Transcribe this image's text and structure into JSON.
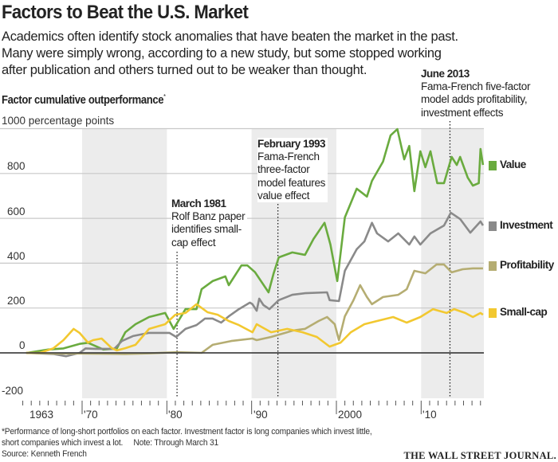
{
  "title": "Factors to Beat the U.S. Market",
  "subtitle": [
    "Academics often identify stock anomalies that have beaten the market in the past.",
    "Many were simply wrong, according to a new study, but some stopped working",
    "after publication and others turned out to be weaker than thought."
  ],
  "chart_data": {
    "type": "line",
    "title": "Factor cumulative outperformance",
    "title_marker": "*",
    "ylabel": "percentage points",
    "yunit_label": "1000 percentage points",
    "ylim": [
      -200,
      1000
    ],
    "yticks": [
      -200,
      0,
      200,
      400,
      600,
      800,
      1000
    ],
    "ytick_labels": [
      "-200",
      "0",
      "200",
      "400",
      "600",
      "800",
      "1000 percentage points"
    ],
    "xlim": [
      1962.7,
      2017.4
    ],
    "xtick_labels": [
      {
        "x": 1963,
        "label": "1963"
      },
      {
        "x": 1970,
        "label": "'70"
      },
      {
        "x": 1980,
        "label": "'80"
      },
      {
        "x": 1990,
        "label": "'90"
      },
      {
        "x": 2000,
        "label": "2000"
      },
      {
        "x": 2010,
        "label": "'10"
      }
    ],
    "grid": true,
    "shaded_decades": [
      [
        1970,
        1980
      ],
      [
        1990,
        2000
      ],
      [
        2010,
        2017.4
      ]
    ],
    "legend_placement": "right (line-end labels)",
    "series": [
      {
        "name": "Value",
        "color": "#6aab3f",
        "points": [
          [
            1963.5,
            0
          ],
          [
            1966.0,
            15
          ],
          [
            1967.8,
            20
          ],
          [
            1969.7,
            40
          ],
          [
            1970.7,
            45
          ],
          [
            1972.5,
            15
          ],
          [
            1974.1,
            20
          ],
          [
            1975.1,
            92
          ],
          [
            1976.3,
            128
          ],
          [
            1977.9,
            160
          ],
          [
            1979.8,
            178
          ],
          [
            1980.8,
            107
          ],
          [
            1982.2,
            195
          ],
          [
            1983.5,
            195
          ],
          [
            1984.1,
            284
          ],
          [
            1985.4,
            320
          ],
          [
            1986.9,
            341
          ],
          [
            1987.3,
            302
          ],
          [
            1988.8,
            390
          ],
          [
            1989.5,
            390
          ],
          [
            1990.4,
            360
          ],
          [
            1992.0,
            270
          ],
          [
            1992.6,
            355
          ],
          [
            1993.2,
            426
          ],
          [
            1994.8,
            448
          ],
          [
            1996.3,
            437
          ],
          [
            1997.3,
            508
          ],
          [
            1998.6,
            580
          ],
          [
            1999.3,
            483
          ],
          [
            2000.1,
            320
          ],
          [
            2001.0,
            604
          ],
          [
            2002.4,
            732
          ],
          [
            2003.6,
            697
          ],
          [
            2004.2,
            767
          ],
          [
            2005.5,
            853
          ],
          [
            2006.4,
            970
          ],
          [
            2007.2,
            998
          ],
          [
            2008.0,
            863
          ],
          [
            2008.6,
            923
          ],
          [
            2009.2,
            721
          ],
          [
            2009.9,
            899
          ],
          [
            2010.5,
            828
          ],
          [
            2011.1,
            899
          ],
          [
            2011.9,
            757
          ],
          [
            2012.7,
            757
          ],
          [
            2013.6,
            874
          ],
          [
            2014.2,
            838
          ],
          [
            2014.6,
            874
          ],
          [
            2015.5,
            781
          ],
          [
            2016.1,
            746
          ],
          [
            2016.8,
            757
          ],
          [
            2017.0,
            909
          ],
          [
            2017.3,
            838
          ]
        ]
      },
      {
        "name": "Investment",
        "color": "#8a8a8a",
        "points": [
          [
            1963.4,
            0
          ],
          [
            1966.6,
            -5
          ],
          [
            1968.1,
            -15
          ],
          [
            1969.7,
            0
          ],
          [
            1970.4,
            20
          ],
          [
            1971.6,
            18
          ],
          [
            1973.8,
            18
          ],
          [
            1974.7,
            53
          ],
          [
            1976.0,
            75
          ],
          [
            1977.9,
            89
          ],
          [
            1980.3,
            89
          ],
          [
            1981.1,
            71
          ],
          [
            1982.2,
            107
          ],
          [
            1983.5,
            124
          ],
          [
            1984.5,
            153
          ],
          [
            1985.4,
            153
          ],
          [
            1986.4,
            135
          ],
          [
            1987.3,
            163
          ],
          [
            1988.5,
            195
          ],
          [
            1990.1,
            217
          ],
          [
            1990.6,
            188
          ],
          [
            1989.8,
            224
          ],
          [
            1990.9,
            242
          ],
          [
            1991.4,
            213
          ],
          [
            1992.1,
            195
          ],
          [
            1993.2,
            235
          ],
          [
            1994.8,
            259
          ],
          [
            1996.3,
            266
          ],
          [
            1998.9,
            270
          ],
          [
            1999.2,
            235
          ],
          [
            2000.3,
            231
          ],
          [
            2001.0,
            366
          ],
          [
            2002.4,
            462
          ],
          [
            2003.3,
            497
          ],
          [
            2004.2,
            580
          ],
          [
            2004.8,
            533
          ],
          [
            2006.1,
            497
          ],
          [
            2007.3,
            533
          ],
          [
            2008.6,
            483
          ],
          [
            2009.2,
            519
          ],
          [
            2009.9,
            483
          ],
          [
            2011.1,
            533
          ],
          [
            2012.7,
            568
          ],
          [
            2013.5,
            625
          ],
          [
            2014.6,
            597
          ],
          [
            2015.8,
            536
          ],
          [
            2017.0,
            586
          ],
          [
            2017.3,
            568
          ]
        ]
      },
      {
        "name": "Profitability",
        "color": "#b5ad72",
        "points": [
          [
            1963.4,
            0
          ],
          [
            1966.6,
            -3
          ],
          [
            1970.0,
            -3
          ],
          [
            1975.0,
            -5
          ],
          [
            1978.0,
            -2
          ],
          [
            1981.2,
            3
          ],
          [
            1984.1,
            0
          ],
          [
            1985.4,
            36
          ],
          [
            1987.6,
            53
          ],
          [
            1990.1,
            64
          ],
          [
            1990.6,
            57
          ],
          [
            1992.3,
            71
          ],
          [
            1994.2,
            92
          ],
          [
            1994.8,
            99
          ],
          [
            1996.3,
            107
          ],
          [
            1997.9,
            142
          ],
          [
            1998.9,
            160
          ],
          [
            1999.8,
            128
          ],
          [
            2000.3,
            57
          ],
          [
            2001.0,
            163
          ],
          [
            2002.0,
            234
          ],
          [
            2002.8,
            302
          ],
          [
            2003.6,
            249
          ],
          [
            2004.2,
            217
          ],
          [
            2005.5,
            249
          ],
          [
            2007.3,
            259
          ],
          [
            2008.3,
            284
          ],
          [
            2009.2,
            366
          ],
          [
            2010.5,
            355
          ],
          [
            2011.8,
            394
          ],
          [
            2012.7,
            394
          ],
          [
            2013.6,
            359
          ],
          [
            2014.9,
            373
          ],
          [
            2016.1,
            377
          ],
          [
            2017.3,
            377
          ]
        ]
      },
      {
        "name": "Small-cap",
        "color": "#f2c830",
        "points": [
          [
            1963.4,
            0
          ],
          [
            1965.0,
            0
          ],
          [
            1966.6,
            20
          ],
          [
            1967.8,
            57
          ],
          [
            1969.0,
            107
          ],
          [
            1969.7,
            89
          ],
          [
            1970.7,
            46
          ],
          [
            1971.3,
            57
          ],
          [
            1972.3,
            64
          ],
          [
            1973.5,
            21
          ],
          [
            1974.1,
            11
          ],
          [
            1975.1,
            21
          ],
          [
            1976.3,
            36
          ],
          [
            1977.9,
            107
          ],
          [
            1979.8,
            128
          ],
          [
            1981.0,
            170
          ],
          [
            1982.2,
            178
          ],
          [
            1983.5,
            217
          ],
          [
            1984.8,
            181
          ],
          [
            1986.0,
            170
          ],
          [
            1987.3,
            142
          ],
          [
            1988.5,
            124
          ],
          [
            1990.1,
            92
          ],
          [
            1990.6,
            128
          ],
          [
            1992.3,
            92
          ],
          [
            1994.2,
            107
          ],
          [
            1996.0,
            92
          ],
          [
            1997.7,
            71
          ],
          [
            1999.2,
            28
          ],
          [
            2000.5,
            46
          ],
          [
            2001.7,
            92
          ],
          [
            2003.3,
            128
          ],
          [
            2004.8,
            142
          ],
          [
            2006.7,
            160
          ],
          [
            2008.3,
            135
          ],
          [
            2009.9,
            160
          ],
          [
            2011.4,
            195
          ],
          [
            2013.0,
            178
          ],
          [
            2013.9,
            195
          ],
          [
            2015.2,
            178
          ],
          [
            2016.1,
            160
          ],
          [
            2017.0,
            178
          ],
          [
            2017.3,
            170
          ]
        ]
      }
    ],
    "annotations": [
      {
        "x": 1981.2,
        "heading": "March 1981",
        "lines": [
          "Rolf Banz paper",
          "identifies small-",
          "cap effect"
        ]
      },
      {
        "x": 1993.1,
        "heading": "February 1993",
        "lines": [
          "Fama-French",
          "three-factor",
          "model features",
          "value effect"
        ]
      },
      {
        "x": 2013.4,
        "heading": "June 2013",
        "lines": [
          "Fama-French five-factor",
          "model adds profitability,",
          "investment effects"
        ]
      }
    ]
  },
  "footnote": [
    "*Performance of long-short portfolios on each factor. Investment factor is long companies which invest little,",
    "short companies which invest a lot.     Note: Through March 31",
    "Source: Kenneth French"
  ],
  "logo_text": "THE WALL STREET JOURNAL."
}
